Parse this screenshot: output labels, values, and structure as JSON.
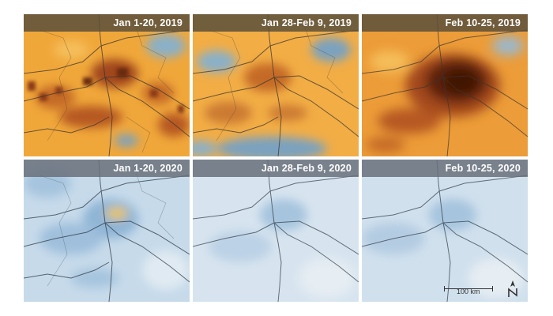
{
  "panels": {
    "p1": {
      "title": "Jan 1-20, 2019"
    },
    "p2": {
      "title": "Jan 28-Feb 9, 2019"
    },
    "p3": {
      "title": "Feb 10-25, 2019"
    },
    "p4": {
      "title": "Jan 1-20, 2020"
    },
    "p5": {
      "title": "Jan 28-Feb 9, 2020"
    },
    "p6": {
      "title": "Feb 10-25, 2020"
    }
  },
  "scale": {
    "label": "100 km"
  },
  "colors": {
    "high_2019": "#f0a73a",
    "hotspot_2019": "#6b2a10",
    "low_2020": "#cfe0ee",
    "title_bar_2019": "#5a503c",
    "title_bar_2020": "#69707a"
  }
}
